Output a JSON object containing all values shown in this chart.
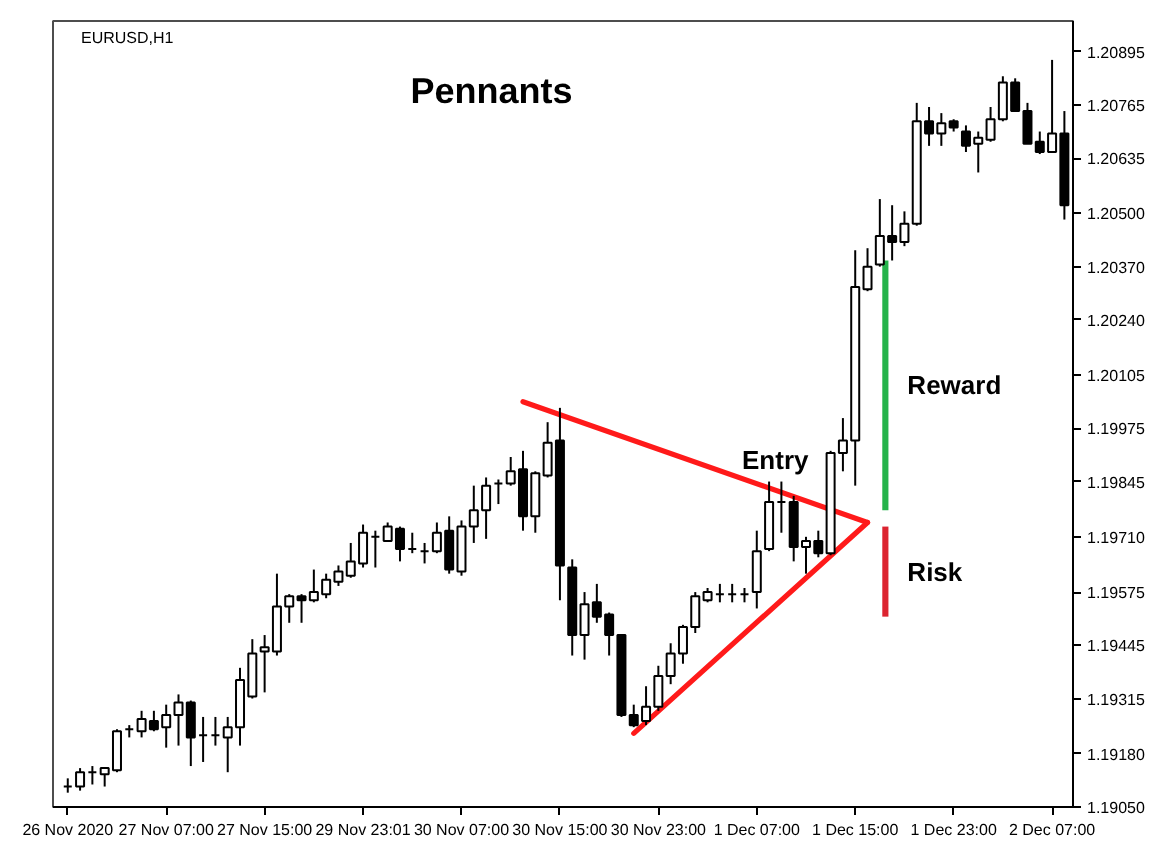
{
  "chart_data": {
    "type": "candlestick",
    "title": "Pennants",
    "subtitle": "EURUSD,H1",
    "categories": [
      "26 Nov 2020",
      null,
      null,
      null,
      null,
      null,
      null,
      null,
      "27 Nov 07:00",
      null,
      null,
      null,
      null,
      null,
      null,
      null,
      "27 Nov 15:00",
      null,
      null,
      null,
      null,
      null,
      null,
      null,
      "29 Nov 23:01",
      null,
      null,
      null,
      null,
      null,
      null,
      null,
      "30 Nov 07:00",
      null,
      null,
      null,
      null,
      null,
      null,
      null,
      "30 Nov 15:00",
      null,
      null,
      null,
      null,
      null,
      null,
      null,
      "30 Nov 23:00",
      null,
      null,
      null,
      null,
      null,
      null,
      null,
      "1 Dec 07:00",
      null,
      null,
      null,
      null,
      null,
      null,
      null,
      "1 Dec 15:00",
      null,
      null,
      null,
      null,
      null,
      null,
      null,
      "1 Dec 23:00",
      null,
      null,
      null,
      null,
      null,
      null,
      null,
      "2 Dec 07:00",
      null
    ],
    "ylim": [
      1.1905,
      1.2097
    ],
    "yticks": [
      {
        "value": 1.1905,
        "label": "1.19050"
      },
      {
        "value": 1.1918,
        "label": "1.19180"
      },
      1.19315,
      1.19445,
      1.19575,
      {
        "value": 1.1971,
        "label": "1.19710"
      },
      1.19845,
      1.19975,
      1.20105,
      {
        "value": 1.2024,
        "label": "1.20240"
      },
      {
        "value": 1.2037,
        "label": "1.20370"
      },
      {
        "value": 1.205,
        "label": "1.20500"
      },
      1.20635,
      1.20765,
      1.20895
    ],
    "grid": false,
    "series": [
      {
        "color": "#000000",
        "ohlc": [
          [
            1.191,
            1.1912,
            1.19085,
            1.191
          ],
          [
            1.191,
            1.19145,
            1.1909,
            1.19135
          ],
          [
            1.19135,
            1.1915,
            1.19105,
            1.19135
          ],
          [
            1.1913,
            1.19145,
            1.191,
            1.19145
          ],
          [
            1.1914,
            1.1924,
            1.19135,
            1.19235
          ],
          [
            1.1924,
            1.1925,
            1.1922,
            1.1924
          ],
          [
            1.19235,
            1.19285,
            1.1922,
            1.19265
          ],
          [
            1.1926,
            1.19285,
            1.19235,
            1.1924
          ],
          [
            1.19245,
            1.193,
            1.19195,
            1.19275
          ],
          [
            1.19275,
            1.19325,
            1.192,
            1.19305
          ],
          [
            1.19305,
            1.1931,
            1.1915,
            1.1922
          ],
          [
            1.19225,
            1.1927,
            1.1916,
            1.19225
          ],
          [
            1.19225,
            1.1927,
            1.192,
            1.19225
          ],
          [
            1.1922,
            1.1927,
            1.19135,
            1.19245
          ],
          [
            1.19245,
            1.1939,
            1.192,
            1.1936
          ],
          [
            1.1932,
            1.1946,
            1.19315,
            1.19425
          ],
          [
            1.1943,
            1.1947,
            1.1933,
            1.1944
          ],
          [
            1.1943,
            1.1962,
            1.1942,
            1.1954
          ],
          [
            1.1954,
            1.1957,
            1.195,
            1.19565
          ],
          [
            1.19565,
            1.1957,
            1.195,
            1.19555
          ],
          [
            1.19555,
            1.1963,
            1.1955,
            1.19575
          ],
          [
            1.1957,
            1.1962,
            1.1956,
            1.19605
          ],
          [
            1.196,
            1.1964,
            1.1959,
            1.19625
          ],
          [
            1.19615,
            1.19695,
            1.1961,
            1.1965
          ],
          [
            1.19645,
            1.1974,
            1.19635,
            1.1972
          ],
          [
            1.1971,
            1.19725,
            1.19635,
            1.1971
          ],
          [
            1.197,
            1.19745,
            1.197,
            1.19735
          ],
          [
            1.1973,
            1.19735,
            1.1965,
            1.1968
          ],
          [
            1.1968,
            1.1972,
            1.1967,
            1.1968
          ],
          [
            1.19675,
            1.19695,
            1.19645,
            1.19675
          ],
          [
            1.19675,
            1.19745,
            1.1967,
            1.1972
          ],
          [
            1.19725,
            1.1976,
            1.1962,
            1.1963
          ],
          [
            1.19625,
            1.1975,
            1.19615,
            1.19735
          ],
          [
            1.19735,
            1.19835,
            1.19695,
            1.19775
          ],
          [
            1.19775,
            1.19855,
            1.19705,
            1.19835
          ],
          [
            1.1984,
            1.1985,
            1.1979,
            1.1984
          ],
          [
            1.1984,
            1.19905,
            1.19835,
            1.1987
          ],
          [
            1.19875,
            1.1992,
            1.19725,
            1.1976
          ],
          [
            1.1976,
            1.1987,
            1.1972,
            1.19865
          ],
          [
            1.1986,
            1.1999,
            1.19855,
            1.1994
          ],
          [
            1.19945,
            1.20025,
            1.19555,
            1.1964
          ],
          [
            1.19635,
            1.19655,
            1.1942,
            1.1947
          ],
          [
            1.1947,
            1.19575,
            1.1941,
            1.19545
          ],
          [
            1.1955,
            1.19595,
            1.195,
            1.19515
          ],
          [
            1.1952,
            1.19525,
            1.1942,
            1.1947
          ],
          [
            1.1947,
            1.1947,
            1.1927,
            1.19275
          ],
          [
            1.19275,
            1.193,
            1.19245,
            1.1925
          ],
          [
            1.1926,
            1.19345,
            1.1925,
            1.19295
          ],
          [
            1.19295,
            1.19395,
            1.19285,
            1.1937
          ],
          [
            1.1937,
            1.1945,
            1.1935,
            1.19425
          ],
          [
            1.19425,
            1.19495,
            1.194,
            1.1949
          ],
          [
            1.1949,
            1.19575,
            1.19475,
            1.19565
          ],
          [
            1.19555,
            1.19585,
            1.1955,
            1.19575
          ],
          [
            1.1957,
            1.19595,
            1.1955,
            1.1957
          ],
          [
            1.1957,
            1.19595,
            1.1955,
            1.1957
          ],
          [
            1.1957,
            1.19585,
            1.1955,
            1.1957
          ],
          [
            1.19575,
            1.19725,
            1.19535,
            1.19675
          ],
          [
            1.1968,
            1.19845,
            1.19675,
            1.19795
          ],
          [
            1.19795,
            1.19845,
            1.1972,
            1.19795
          ],
          [
            1.19795,
            1.1981,
            1.1965,
            1.19685
          ],
          [
            1.19685,
            1.1971,
            1.1962,
            1.197
          ],
          [
            1.197,
            1.19725,
            1.1966,
            1.1967
          ],
          [
            1.1967,
            1.1992,
            1.19665,
            1.19915
          ],
          [
            1.19915,
            1.2,
            1.1987,
            1.19945
          ],
          [
            1.19945,
            1.2041,
            1.19835,
            1.2032
          ],
          [
            1.20315,
            1.20415,
            1.2031,
            1.2037
          ],
          [
            1.20375,
            1.20535,
            1.2037,
            1.20445
          ],
          [
            1.20445,
            1.2052,
            1.20385,
            1.2043
          ],
          [
            1.2043,
            1.20505,
            1.2042,
            1.20475
          ],
          [
            1.20475,
            1.2077,
            1.2047,
            1.20725
          ],
          [
            1.20725,
            1.2076,
            1.20665,
            1.20695
          ],
          [
            1.20695,
            1.20745,
            1.20665,
            1.2072
          ],
          [
            1.20725,
            1.2073,
            1.207,
            1.2071
          ],
          [
            1.207,
            1.20715,
            1.2065,
            1.20665
          ],
          [
            1.2067,
            1.207,
            1.206,
            1.20685
          ],
          [
            1.2068,
            1.2076,
            1.20675,
            1.2073
          ],
          [
            1.2073,
            1.20835,
            1.20725,
            1.2082
          ],
          [
            1.2082,
            1.2083,
            1.2075,
            1.2075
          ],
          [
            1.2075,
            1.2077,
            1.2067,
            1.2067
          ],
          [
            1.20675,
            1.207,
            1.20645,
            1.2065
          ],
          [
            1.2065,
            1.20875,
            1.2065,
            1.20695
          ],
          [
            1.20695,
            1.2075,
            1.20485,
            1.2052
          ]
        ]
      },
      {
        "type": "line",
        "color": "#ff1a1a",
        "values": [
          null,
          null,
          null,
          null,
          null,
          null,
          null,
          null,
          null,
          null,
          null,
          null,
          null,
          null,
          null,
          null,
          null,
          null,
          null,
          null,
          null,
          null,
          null,
          null,
          null,
          null,
          null,
          null,
          null,
          null,
          null,
          null,
          null,
          null,
          null,
          null,
          null,
          1.2004,
          null,
          null,
          null,
          null,
          null,
          null,
          null,
          null,
          null,
          null,
          null,
          null,
          null,
          null,
          null,
          null,
          null,
          null,
          null,
          null,
          null,
          null,
          null,
          null,
          null,
          null,
          null,
          1.19745,
          null,
          null,
          null,
          null,
          null,
          null,
          null,
          null,
          null,
          null,
          null,
          null,
          null,
          null,
          null,
          null
        ]
      },
      {
        "type": "line",
        "color": "#ff1a1a",
        "values": [
          null,
          null,
          null,
          null,
          null,
          null,
          null,
          null,
          null,
          null,
          null,
          null,
          null,
          null,
          null,
          null,
          null,
          null,
          null,
          null,
          null,
          null,
          null,
          null,
          null,
          null,
          null,
          null,
          null,
          null,
          null,
          null,
          null,
          null,
          null,
          null,
          null,
          null,
          null,
          null,
          null,
          null,
          null,
          null,
          null,
          null,
          1.1923,
          null,
          null,
          null,
          null,
          null,
          null,
          null,
          null,
          null,
          null,
          null,
          null,
          null,
          null,
          null,
          null,
          null,
          null,
          1.19745,
          null,
          null,
          null,
          null,
          null,
          null,
          null,
          null,
          null,
          null,
          null,
          null,
          null,
          null,
          null,
          null
        ]
      },
      {
        "type": "bar",
        "name": "Reward",
        "color": "#25b34b",
        "base": [
          null,
          null,
          null,
          null,
          null,
          null,
          null,
          null,
          null,
          null,
          null,
          null,
          null,
          null,
          null,
          null,
          null,
          null,
          null,
          null,
          null,
          null,
          null,
          null,
          null,
          null,
          null,
          null,
          null,
          null,
          null,
          null,
          null,
          null,
          null,
          null,
          null,
          null,
          null,
          null,
          null,
          null,
          null,
          null,
          null,
          null,
          null,
          null,
          null,
          null,
          null,
          null,
          null,
          null,
          null,
          null,
          null,
          null,
          null,
          null,
          null,
          null,
          null,
          null,
          null,
          null,
          1.19775,
          null,
          null,
          null,
          null,
          null,
          null,
          null,
          null,
          null,
          null,
          null,
          null,
          null,
          null,
          null
        ],
        "values": [
          null,
          null,
          null,
          null,
          null,
          null,
          null,
          null,
          null,
          null,
          null,
          null,
          null,
          null,
          null,
          null,
          null,
          null,
          null,
          null,
          null,
          null,
          null,
          null,
          null,
          null,
          null,
          null,
          null,
          null,
          null,
          null,
          null,
          null,
          null,
          null,
          null,
          null,
          null,
          null,
          null,
          null,
          null,
          null,
          null,
          null,
          null,
          null,
          null,
          null,
          null,
          null,
          null,
          null,
          null,
          null,
          null,
          null,
          null,
          null,
          null,
          null,
          null,
          null,
          null,
          null,
          0.0061,
          null,
          null,
          null,
          null,
          null,
          null,
          null,
          null,
          null,
          null,
          null,
          null,
          null,
          null,
          null
        ]
      },
      {
        "type": "bar",
        "name": "Risk",
        "color": "#dc2430",
        "base": [
          null,
          null,
          null,
          null,
          null,
          null,
          null,
          null,
          null,
          null,
          null,
          null,
          null,
          null,
          null,
          null,
          null,
          null,
          null,
          null,
          null,
          null,
          null,
          null,
          null,
          null,
          null,
          null,
          null,
          null,
          null,
          null,
          null,
          null,
          null,
          null,
          null,
          null,
          null,
          null,
          null,
          null,
          null,
          null,
          null,
          null,
          null,
          null,
          null,
          null,
          null,
          null,
          null,
          null,
          null,
          null,
          null,
          null,
          null,
          null,
          null,
          null,
          null,
          null,
          null,
          null,
          1.19515,
          null,
          null,
          null,
          null,
          null,
          null,
          null,
          null,
          null,
          null,
          null,
          null,
          null,
          null,
          null
        ],
        "values": [
          null,
          null,
          null,
          null,
          null,
          null,
          null,
          null,
          null,
          null,
          null,
          null,
          null,
          null,
          null,
          null,
          null,
          null,
          null,
          null,
          null,
          null,
          null,
          null,
          null,
          null,
          null,
          null,
          null,
          null,
          null,
          null,
          null,
          null,
          null,
          null,
          null,
          null,
          null,
          null,
          null,
          null,
          null,
          null,
          null,
          null,
          null,
          null,
          null,
          null,
          null,
          null,
          null,
          null,
          null,
          null,
          null,
          null,
          null,
          null,
          null,
          null,
          null,
          null,
          null,
          null,
          0.0022,
          null,
          null,
          null,
          null,
          null,
          null,
          null,
          null,
          null,
          null,
          null,
          null,
          null,
          null,
          null
        ]
      }
    ],
    "annotations": [
      "Entry"
    ]
  }
}
